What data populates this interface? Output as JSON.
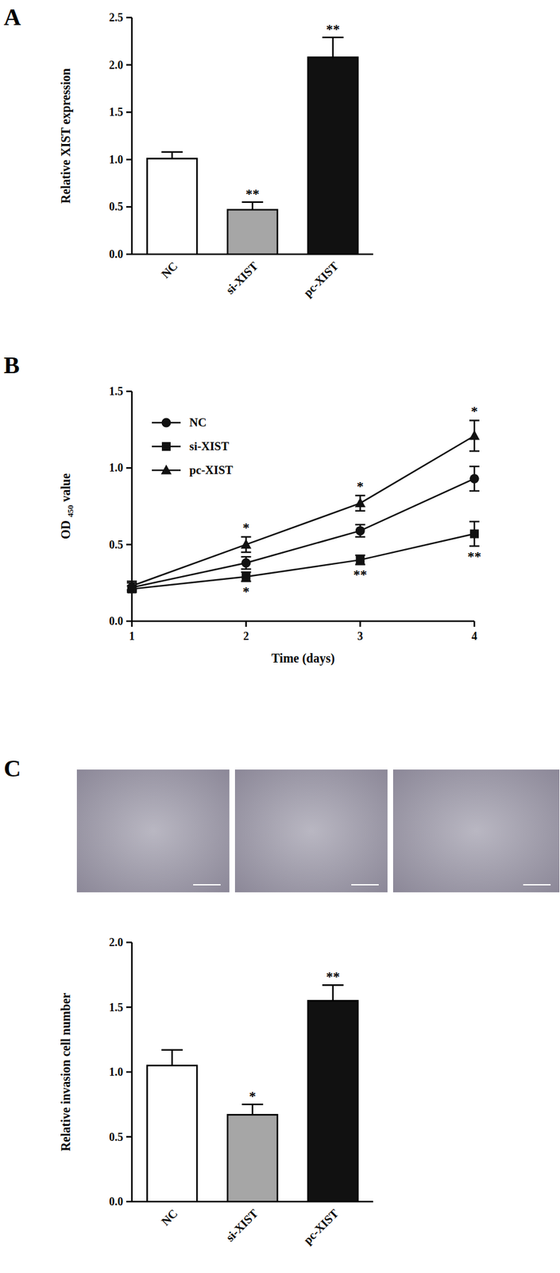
{
  "chart_data": [
    {
      "type": "bar",
      "panel": "A",
      "ylabel": "Relative XIST expression",
      "categories": [
        "NC",
        "si-XIST",
        "pc-XIST"
      ],
      "values": [
        1.01,
        0.47,
        2.08
      ],
      "errors": [
        0.07,
        0.08,
        0.21
      ],
      "significance": [
        null,
        "**",
        "**"
      ],
      "colors": [
        "#ffffff",
        "#a6a6a6",
        "#111111"
      ],
      "ylim": [
        0,
        2.5
      ],
      "yticks": [
        {
          "value": 0,
          "label": "0.0"
        },
        {
          "value": 0.5,
          "label": "0.5"
        },
        {
          "value": 1,
          "label": "1.0"
        },
        {
          "value": 1.5,
          "label": "1.5"
        },
        {
          "value": 2,
          "label": "2.0"
        },
        {
          "value": 2.5,
          "label": "2.5"
        }
      ]
    },
    {
      "type": "line",
      "panel": "B",
      "ylabel": "OD 450 value",
      "xlabel": "Time (days)",
      "x": [
        1,
        2,
        3,
        4
      ],
      "xlim": [
        1,
        4
      ],
      "xticks": [
        1,
        2,
        3,
        4
      ],
      "ylim": [
        0,
        1.5
      ],
      "yticks": [
        {
          "value": 0,
          "label": "0.0"
        },
        {
          "value": 0.5,
          "label": "0.5"
        },
        {
          "value": 1,
          "label": "1.0"
        },
        {
          "value": 1.5,
          "label": "1.5"
        }
      ],
      "legend": "upper left",
      "series": [
        {
          "name": "NC",
          "color": "#111111",
          "marker": "circle",
          "values": [
            0.22,
            0.38,
            0.59,
            0.93
          ],
          "errors": [
            0.03,
            0.04,
            0.04,
            0.08
          ]
        },
        {
          "name": "si-XIST",
          "color": "#111111",
          "marker": "square",
          "values": [
            0.21,
            0.29,
            0.4,
            0.57
          ],
          "errors": [
            0.02,
            0.03,
            0.03,
            0.08
          ],
          "significance": [
            null,
            "*",
            "**",
            "**"
          ]
        },
        {
          "name": "pc-XIST",
          "color": "#111111",
          "marker": "triangle",
          "values": [
            0.23,
            0.5,
            0.77,
            1.21
          ],
          "errors": [
            0.03,
            0.05,
            0.05,
            0.1
          ],
          "significance": [
            null,
            "*",
            "*",
            "*"
          ]
        }
      ]
    },
    {
      "type": "bar",
      "panel": "C",
      "ylabel": "Relative invasion cell number",
      "categories": [
        "NC",
        "si-XIST",
        "pc-XIST"
      ],
      "values": [
        1.05,
        0.67,
        1.55
      ],
      "errors": [
        0.12,
        0.08,
        0.12
      ],
      "significance": [
        null,
        "*",
        "**"
      ],
      "colors": [
        "#ffffff",
        "#a6a6a6",
        "#111111"
      ],
      "ylim": [
        0,
        2
      ],
      "yticks": [
        {
          "value": 0,
          "label": "0.0"
        },
        {
          "value": 0.5,
          "label": "0.5"
        },
        {
          "value": 1,
          "label": "1.0"
        },
        {
          "value": 1.5,
          "label": "1.5"
        },
        {
          "value": 2,
          "label": "2.0"
        }
      ]
    }
  ]
}
